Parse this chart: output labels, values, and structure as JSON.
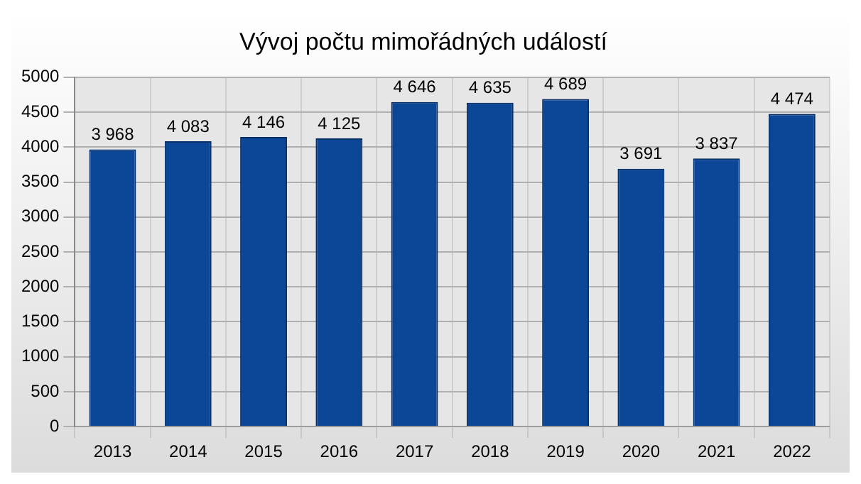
{
  "chart_data": {
    "type": "bar",
    "title": "Vývoj počtu mimořádných událostí",
    "categories": [
      "2013",
      "2014",
      "2015",
      "2016",
      "2017",
      "2018",
      "2019",
      "2020",
      "2021",
      "2022"
    ],
    "values": [
      3968,
      4083,
      4146,
      4125,
      4646,
      4635,
      4689,
      3691,
      3837,
      4474
    ],
    "value_labels": [
      "3 968",
      "4 083",
      "4 146",
      "4 125",
      "4 646",
      "4 635",
      "4 689",
      "3 691",
      "3 837",
      "4 474"
    ],
    "color": "#0b4796",
    "ylim": [
      0,
      5000
    ],
    "yticks": [
      0,
      500,
      1000,
      1500,
      2000,
      2500,
      3000,
      3500,
      4000,
      4500,
      5000
    ],
    "grid": true
  }
}
